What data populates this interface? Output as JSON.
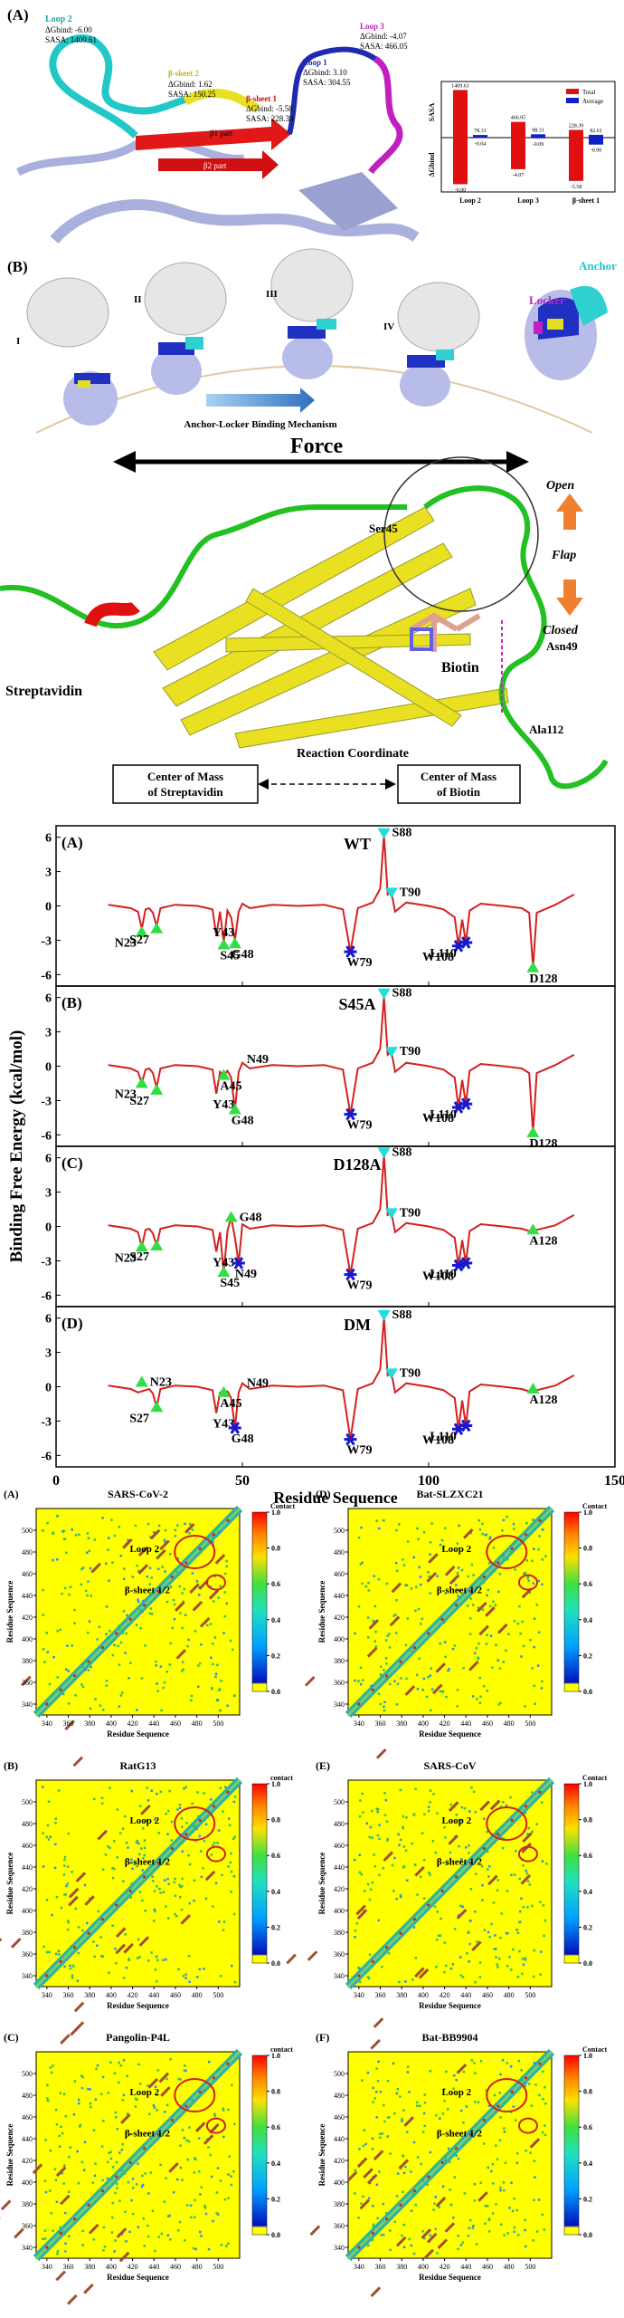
{
  "panel_a": {
    "label": "(A)",
    "regions": [
      {
        "name": "Loop 2",
        "dg": "ΔGbind: -6.00",
        "sasa": "SASA: 1409.61"
      },
      {
        "name": "β-sheet 2",
        "dg": "ΔGbind: 1.62",
        "sasa": "SASA: 150.25"
      },
      {
        "name": "β-sheet 1",
        "dg": "ΔGbind: -5.58",
        "sasa": "SASA: 228.39"
      },
      {
        "name": "Loop 1",
        "dg": "ΔGbind: 3.10",
        "sasa": "SASA: 304.55"
      },
      {
        "name": "Loop 3",
        "dg": "ΔGbind: -4.07",
        "sasa": "SASA: 466.05"
      }
    ],
    "strands": [
      "β1 part",
      "β2 part"
    ]
  },
  "panel_b": {
    "label": "(B)",
    "stages": [
      "I",
      "II",
      "III",
      "IV"
    ],
    "anchor": "Anchor",
    "locker": "Locker",
    "mechanism": "Anchor-Locker Binding Mechanism"
  },
  "streptavidin": {
    "force": "Force",
    "open": "Open",
    "flap": "Flap",
    "closed": "Closed",
    "ser45": "Ser45",
    "asn49": "Asn49",
    "ala112": "Ala112",
    "protein": "Streptavidin",
    "ligand": "Biotin",
    "coordinate": "Reaction Coordinate",
    "box_left": [
      "Center of Mass",
      "of Streptavidin"
    ],
    "box_right": [
      "Center of Mass",
      "of Biotin"
    ]
  },
  "chart_data": [
    {
      "type": "bar",
      "categories": [
        "Loop 2",
        "Loop 3",
        "β-sheet 1"
      ],
      "ylabel": "SASA",
      "y2label": "ΔGbind",
      "ylim": [
        0,
        1500
      ],
      "y2lim": [
        -7,
        0
      ],
      "series": [
        {
          "name": "Total",
          "color": "#e01010",
          "values": [
            1409.61,
            466.05,
            228.39
          ],
          "dg_values": [
            -6.0,
            -4.07,
            -5.58
          ],
          "dg_labels": [
            "-6.00",
            "-4.07",
            "-5.58"
          ]
        },
        {
          "name": "Average",
          "color": "#1020c8",
          "values": [
            78.31,
            98.31,
            82.61
          ],
          "dg_values": [
            -0.04,
            -0.09,
            -0.9
          ],
          "dg_labels": [
            "-0.04",
            "-0.09",
            "-0.90"
          ]
        }
      ]
    },
    {
      "type": "line",
      "xlabel": "Residue Sequence",
      "ylabel": "Binding Free Energy (kcal/mol)",
      "xlim": [
        0,
        150
      ],
      "ylim": [
        -7,
        7
      ],
      "xticks": [
        0,
        50,
        100,
        150
      ],
      "yticks": [
        6,
        3,
        0,
        -3,
        -6
      ],
      "color": "#d42020",
      "x": [
        14,
        20,
        22,
        23,
        24,
        25,
        26,
        27,
        28,
        32,
        38,
        42,
        43,
        44,
        45,
        46,
        47,
        48,
        49,
        50,
        52,
        58,
        65,
        72,
        77,
        79,
        81,
        85,
        87,
        88,
        89,
        90,
        91,
        94,
        100,
        104,
        107,
        108,
        109,
        110,
        111,
        114,
        120,
        125,
        127,
        128,
        129,
        134,
        139
      ],
      "panels": [
        {
          "label": "(A)",
          "title": "WT",
          "values": [
            0.1,
            -0.2,
            -0.5,
            -2,
            -0.3,
            -0.2,
            -0.6,
            -1.8,
            -0.2,
            0.1,
            0,
            -0.3,
            -2.6,
            -0.5,
            -3.2,
            -0.4,
            -1,
            -3,
            -0.5,
            0.2,
            -0.2,
            0.1,
            0,
            0.1,
            -0.3,
            -4,
            -0.2,
            0.3,
            1.5,
            6.2,
            1,
            1.2,
            -0.5,
            0.3,
            0,
            -0.3,
            -1,
            -3.5,
            -1.2,
            -3.2,
            -0.4,
            0.2,
            0,
            -0.2,
            -0.6,
            -5.4,
            -0.6,
            0.1,
            1
          ],
          "markers": [
            {
              "label": "N23",
              "x": 23,
              "y": -2.3,
              "symbol": "up"
            },
            {
              "label": "S27",
              "x": 27,
              "y": -2,
              "symbol": "up"
            },
            {
              "label": "Y43",
              "x": 43,
              "y": -1.4,
              "symbol": "none"
            },
            {
              "label": "S45",
              "x": 45,
              "y": -3.4,
              "symbol": "up"
            },
            {
              "label": "G48",
              "x": 48,
              "y": -3.3,
              "symbol": "up"
            },
            {
              "label": "W79",
              "x": 79,
              "y": -4,
              "symbol": "star"
            },
            {
              "label": "S88",
              "x": 88,
              "y": 6.4,
              "symbol": "down"
            },
            {
              "label": "T90",
              "x": 90,
              "y": 1.2,
              "symbol": "down"
            },
            {
              "label": "W108",
              "x": 108,
              "y": -3.5,
              "symbol": "star"
            },
            {
              "label": "L110",
              "x": 110,
              "y": -3.2,
              "symbol": "star"
            },
            {
              "label": "D128",
              "x": 128,
              "y": -5.4,
              "symbol": "up"
            }
          ]
        },
        {
          "label": "(B)",
          "title": "S45A",
          "values": [
            0.1,
            -0.2,
            -0.5,
            -1.5,
            -0.3,
            -0.2,
            -0.6,
            -1.9,
            -0.2,
            0.1,
            0,
            -0.3,
            -2.4,
            -0.5,
            -0.8,
            -0.4,
            -1,
            -3.8,
            -0.5,
            0.3,
            -0.2,
            0.1,
            0,
            0.1,
            -0.3,
            -4.2,
            -0.2,
            0.3,
            1.5,
            6.1,
            1,
            1.3,
            -0.5,
            0.3,
            0,
            -0.3,
            -1,
            -3.6,
            -1.2,
            -3.3,
            -0.4,
            0.2,
            0,
            -0.2,
            -0.6,
            -5.8,
            -0.6,
            0.1,
            1
          ],
          "markers": [
            {
              "label": "N23",
              "x": 23,
              "y": -1.5,
              "symbol": "up"
            },
            {
              "label": "S27",
              "x": 27,
              "y": -2.1,
              "symbol": "up"
            },
            {
              "label": "Y43",
              "x": 43,
              "y": -2.4,
              "symbol": "none"
            },
            {
              "label": "A45",
              "x": 45,
              "y": -0.8,
              "symbol": "up"
            },
            {
              "label": "G48",
              "x": 48,
              "y": -3.8,
              "symbol": "up"
            },
            {
              "label": "N49",
              "x": 49,
              "y": 0.6,
              "symbol": "none"
            },
            {
              "label": "W79",
              "x": 79,
              "y": -4.2,
              "symbol": "star"
            },
            {
              "label": "S88",
              "x": 88,
              "y": 6.4,
              "symbol": "down"
            },
            {
              "label": "T90",
              "x": 90,
              "y": 1.3,
              "symbol": "down"
            },
            {
              "label": "W108",
              "x": 108,
              "y": -3.6,
              "symbol": "star"
            },
            {
              "label": "L110",
              "x": 110,
              "y": -3.3,
              "symbol": "star"
            },
            {
              "label": "D128",
              "x": 128,
              "y": -5.8,
              "symbol": "up"
            }
          ]
        },
        {
          "label": "(C)",
          "title": "D128A",
          "values": [
            0.1,
            -0.2,
            -0.5,
            -1.8,
            -0.3,
            -0.2,
            -0.6,
            -1.7,
            -0.2,
            0.1,
            0,
            -0.3,
            -2.2,
            -0.5,
            -4,
            -0.4,
            0.8,
            -1,
            -3.2,
            0.2,
            -0.2,
            0.1,
            0,
            0.1,
            -0.3,
            -4.2,
            -0.2,
            0.3,
            1.5,
            6.3,
            1,
            1.2,
            -0.5,
            0.3,
            0,
            -0.3,
            -1,
            -3.4,
            -1.2,
            -3.2,
            -0.4,
            0.2,
            0,
            -0.2,
            -0.4,
            -0.3,
            -0.3,
            0.1,
            1
          ],
          "markers": [
            {
              "label": "N23",
              "x": 23,
              "y": -1.8,
              "symbol": "up"
            },
            {
              "label": "S27",
              "x": 27,
              "y": -1.7,
              "symbol": "up"
            },
            {
              "label": "Y43",
              "x": 43,
              "y": -2.2,
              "symbol": "none"
            },
            {
              "label": "G48",
              "x": 47,
              "y": 0.8,
              "symbol": "up"
            },
            {
              "label": "S45",
              "x": 45,
              "y": -4,
              "symbol": "up"
            },
            {
              "label": "N49",
              "x": 49,
              "y": -3.2,
              "symbol": "star"
            },
            {
              "label": "W79",
              "x": 79,
              "y": -4.2,
              "symbol": "star"
            },
            {
              "label": "S88",
              "x": 88,
              "y": 6.5,
              "symbol": "down"
            },
            {
              "label": "T90",
              "x": 90,
              "y": 1.2,
              "symbol": "down"
            },
            {
              "label": "W108",
              "x": 108,
              "y": -3.4,
              "symbol": "star"
            },
            {
              "label": "L110",
              "x": 110,
              "y": -3.2,
              "symbol": "star"
            },
            {
              "label": "A128",
              "x": 128,
              "y": -0.3,
              "symbol": "up"
            }
          ]
        },
        {
          "label": "(D)",
          "title": "DM",
          "values": [
            0.1,
            -0.2,
            -0.5,
            -0.4,
            -0.3,
            -0.2,
            -0.6,
            -1.8,
            -0.2,
            0.1,
            0,
            -0.3,
            -2.3,
            -0.5,
            -0.5,
            -0.4,
            -1,
            -3.6,
            -0.5,
            0.3,
            -0.2,
            0.1,
            0,
            0.1,
            -0.3,
            -4.6,
            -0.2,
            0.3,
            1.5,
            6.1,
            1,
            1.2,
            -0.5,
            0.3,
            0,
            -0.3,
            -1,
            -3.7,
            -1.2,
            -3.4,
            -0.4,
            0.2,
            0,
            -0.2,
            -0.4,
            -0.2,
            -0.3,
            0.1,
            1
          ],
          "markers": [
            {
              "label": "N23",
              "x": 23,
              "y": 0.4,
              "symbol": "up"
            },
            {
              "label": "S27",
              "x": 27,
              "y": -1.8,
              "symbol": "up"
            },
            {
              "label": "Y43",
              "x": 43,
              "y": -2.3,
              "symbol": "none"
            },
            {
              "label": "A45",
              "x": 45,
              "y": -0.5,
              "symbol": "up"
            },
            {
              "label": "G48",
              "x": 48,
              "y": -3.6,
              "symbol": "star"
            },
            {
              "label": "N49",
              "x": 49,
              "y": 0.3,
              "symbol": "none"
            },
            {
              "label": "W79",
              "x": 79,
              "y": -4.6,
              "symbol": "star"
            },
            {
              "label": "S88",
              "x": 88,
              "y": 6.3,
              "symbol": "down"
            },
            {
              "label": "T90",
              "x": 90,
              "y": 1.2,
              "symbol": "down"
            },
            {
              "label": "W108",
              "x": 108,
              "y": -3.7,
              "symbol": "star"
            },
            {
              "label": "L110",
              "x": 110,
              "y": -3.4,
              "symbol": "star"
            },
            {
              "label": "A128",
              "x": 128,
              "y": -0.2,
              "symbol": "up"
            }
          ]
        }
      ],
      "marker_colors": {
        "up": "#33dd44",
        "star": "#1818cc",
        "down": "#22dddd"
      }
    },
    {
      "type": "heatmap",
      "xlabel": "Residue Sequence",
      "ylabel": "Residue Sequence",
      "xlim": [
        330,
        520
      ],
      "ylim": [
        330,
        520
      ],
      "xticks": [
        340,
        360,
        380,
        400,
        420,
        440,
        460,
        480,
        500
      ],
      "yticks": [
        340,
        360,
        380,
        400,
        420,
        440,
        460,
        480,
        500
      ],
      "clim": [
        0,
        1
      ],
      "cticks": [
        {
          "value": 0,
          "label": "0.0"
        },
        0.2,
        0.4,
        0.6,
        0.8,
        {
          "value": 1,
          "label": "1.0"
        }
      ],
      "annotations": [
        "Loop 2",
        "β-sheet 1/2"
      ],
      "panels": [
        {
          "label": "(A)",
          "title": "SARS-CoV-2",
          "colorbar_label": "Contact"
        },
        {
          "label": "(B)",
          "title": "RatG13",
          "colorbar_label": "contact"
        },
        {
          "label": "(C)",
          "title": "Pangolin-P4L",
          "colorbar_label": "contact"
        },
        {
          "label": "(D)",
          "title": "Bat-SLZXC21",
          "colorbar_label": "Contact"
        },
        {
          "label": "(E)",
          "title": "SARS-CoV",
          "colorbar_label": "Contact"
        },
        {
          "label": "(F)",
          "title": "Bat-BB9904",
          "colorbar_label": "Contact"
        }
      ]
    }
  ]
}
